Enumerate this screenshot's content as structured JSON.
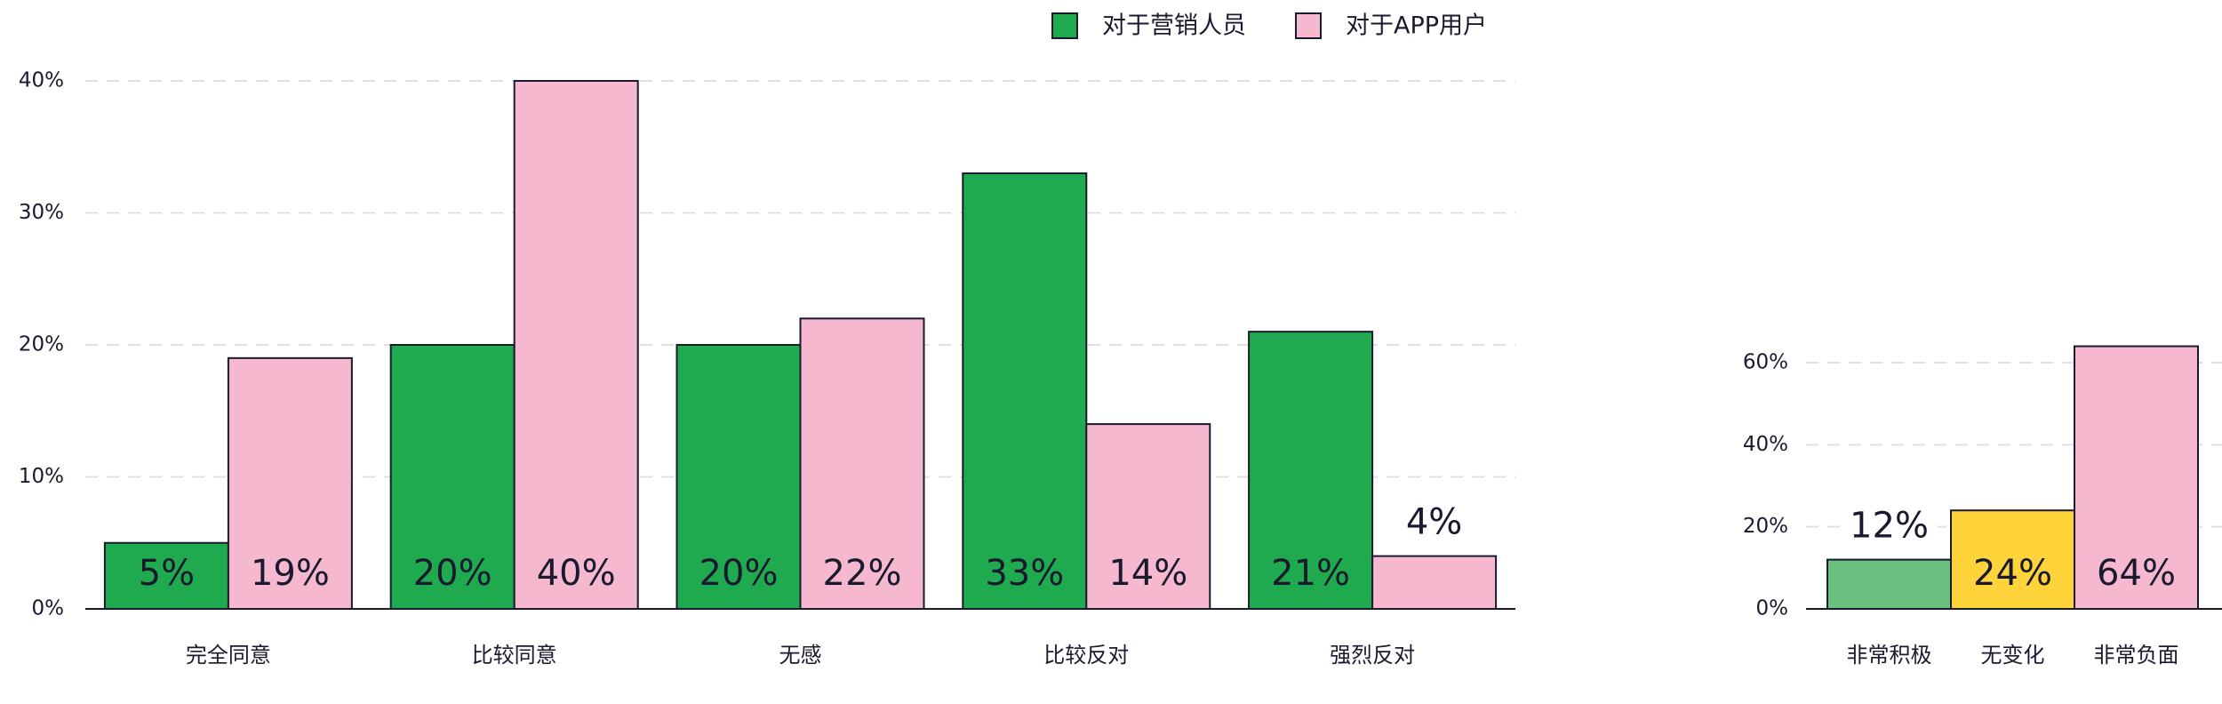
{
  "chart_data": [
    {
      "type": "grouped-bar",
      "categories": [
        "完全同意",
        "比较同意",
        "无感",
        "比较反对",
        "强烈反对"
      ],
      "series": [
        {
          "name": "对于营销人员",
          "color": "#1faa50",
          "values": [
            5,
            20,
            20,
            33,
            21
          ],
          "value_labels": [
            "5%",
            "20%",
            "20%",
            "33%",
            "21%"
          ]
        },
        {
          "name": "对于APP用户",
          "color": "#f6b8ce",
          "values": [
            19,
            40,
            22,
            14,
            4
          ],
          "value_labels": [
            "19%",
            "40%",
            "22%",
            "14%",
            "4%"
          ]
        }
      ],
      "ylim": [
        0,
        40
      ],
      "yticks": [
        {
          "value": 0,
          "label": "0%"
        },
        {
          "value": 10,
          "label": "10%"
        },
        {
          "value": 20,
          "label": "20%"
        },
        {
          "value": 30,
          "label": "30%"
        },
        {
          "value": 40,
          "label": "40%"
        }
      ],
      "grid": true,
      "legend": "top"
    },
    {
      "type": "bar",
      "categories": [
        "非常积极",
        "无变化",
        "非常负面"
      ],
      "values": [
        12,
        24,
        64
      ],
      "value_labels": [
        "12%",
        "24%",
        "64%"
      ],
      "colors": [
        "#6abf7f",
        "#ffd43b",
        "#f6b8ce"
      ],
      "ylim": [
        0,
        70
      ],
      "yticks": [
        {
          "value": 0,
          "label": "0%"
        },
        {
          "value": 20,
          "label": "20%"
        },
        {
          "value": 40,
          "label": "40%"
        },
        {
          "value": 60,
          "label": "60%"
        }
      ],
      "grid": true
    }
  ]
}
